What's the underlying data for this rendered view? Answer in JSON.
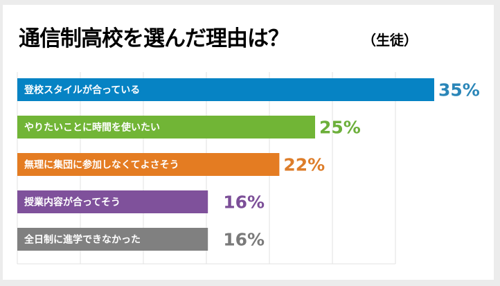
{
  "chart_data": {
    "type": "bar",
    "orientation": "horizontal",
    "title": "通信制高校を選んだ理由は？",
    "subtitle": "（生徒）",
    "categories": [
      "登校スタイルが合っている",
      "やりたいことに時間を使いたい",
      "無理に集団に参加しなくてよさそう",
      "授業内容が合ってそう",
      "全日制に進学できなかった"
    ],
    "values": [
      35,
      25,
      22,
      16,
      16
    ],
    "value_labels": [
      "35%",
      "25%",
      "22%",
      "16%",
      "16%"
    ],
    "colors": [
      "#0683c4",
      "#71b536",
      "#e47c22",
      "#7f519b",
      "#808080"
    ],
    "label_colors": [
      "#2a86b8",
      "#6caf3a",
      "#dd7d2a",
      "#7c4f98",
      "#7a7a7a"
    ],
    "xlabel": "",
    "ylabel": "",
    "xlim": [
      0,
      40
    ],
    "grid": true,
    "legend": "none"
  }
}
